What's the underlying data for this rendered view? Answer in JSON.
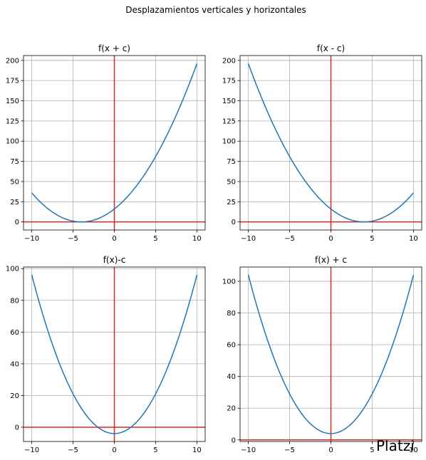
{
  "suptitle": "Desplazamientos verticales y horizontales",
  "colors": {
    "series": "#1f77b4",
    "reference_lines": "#d62728",
    "grid": "#b0b0b0"
  },
  "watermark_text": "Platzi",
  "chart_data": [
    {
      "type": "line",
      "title": "f(x + c)",
      "xlim": [
        -11,
        11
      ],
      "ylim": [
        -10,
        206
      ],
      "xticks": [
        -10,
        -5,
        0,
        5,
        10
      ],
      "yticks": [
        0,
        25,
        50,
        75,
        100,
        125,
        150,
        175,
        200
      ],
      "grid": true,
      "series": [
        {
          "equation": "(x + 4)^2",
          "x": [
            -10,
            -8,
            -6,
            -4,
            -2,
            0,
            2,
            4,
            6,
            8,
            10
          ],
          "y": [
            36,
            16,
            4,
            0,
            4,
            16,
            36,
            64,
            100,
            144,
            196
          ]
        }
      ],
      "reference_lines": {
        "hline_y": 0,
        "vline_x": 0
      }
    },
    {
      "type": "line",
      "title": "f(x - c)",
      "xlim": [
        -11,
        11
      ],
      "ylim": [
        -10,
        206
      ],
      "xticks": [
        -10,
        -5,
        0,
        5,
        10
      ],
      "yticks": [
        0,
        25,
        50,
        75,
        100,
        125,
        150,
        175,
        200
      ],
      "grid": true,
      "series": [
        {
          "equation": "(x - 4)^2",
          "x": [
            -10,
            -8,
            -6,
            -4,
            -2,
            0,
            2,
            4,
            6,
            8,
            10
          ],
          "y": [
            196,
            144,
            100,
            64,
            36,
            16,
            4,
            0,
            4,
            16,
            36
          ]
        }
      ],
      "reference_lines": {
        "hline_y": 0,
        "vline_x": 0
      }
    },
    {
      "type": "line",
      "title": "f(x)-c",
      "xlim": [
        -11,
        11
      ],
      "ylim": [
        -9,
        101
      ],
      "xticks": [
        -10,
        -5,
        0,
        5,
        10
      ],
      "yticks": [
        0,
        20,
        40,
        60,
        80,
        100
      ],
      "grid": true,
      "series": [
        {
          "equation": "x^2 - 4",
          "x": [
            -10,
            -8,
            -6,
            -4,
            -2,
            0,
            2,
            4,
            6,
            8,
            10
          ],
          "y": [
            96,
            60,
            32,
            12,
            0,
            -4,
            0,
            12,
            32,
            60,
            96
          ]
        }
      ],
      "reference_lines": {
        "hline_y": 0,
        "vline_x": 0
      }
    },
    {
      "type": "line",
      "title": "f(x) + c",
      "xlim": [
        -11,
        11
      ],
      "ylim": [
        -1,
        109
      ],
      "xticks": [
        -10,
        -5,
        0,
        5,
        10
      ],
      "yticks": [
        0,
        20,
        40,
        60,
        80,
        100
      ],
      "grid": true,
      "series": [
        {
          "equation": "x^2 + 4",
          "x": [
            -10,
            -8,
            -6,
            -4,
            -2,
            0,
            2,
            4,
            6,
            8,
            10
          ],
          "y": [
            104,
            68,
            40,
            20,
            8,
            4,
            8,
            20,
            40,
            68,
            104
          ]
        }
      ],
      "reference_lines": {
        "hline_y": 0,
        "vline_x": 0
      }
    }
  ]
}
